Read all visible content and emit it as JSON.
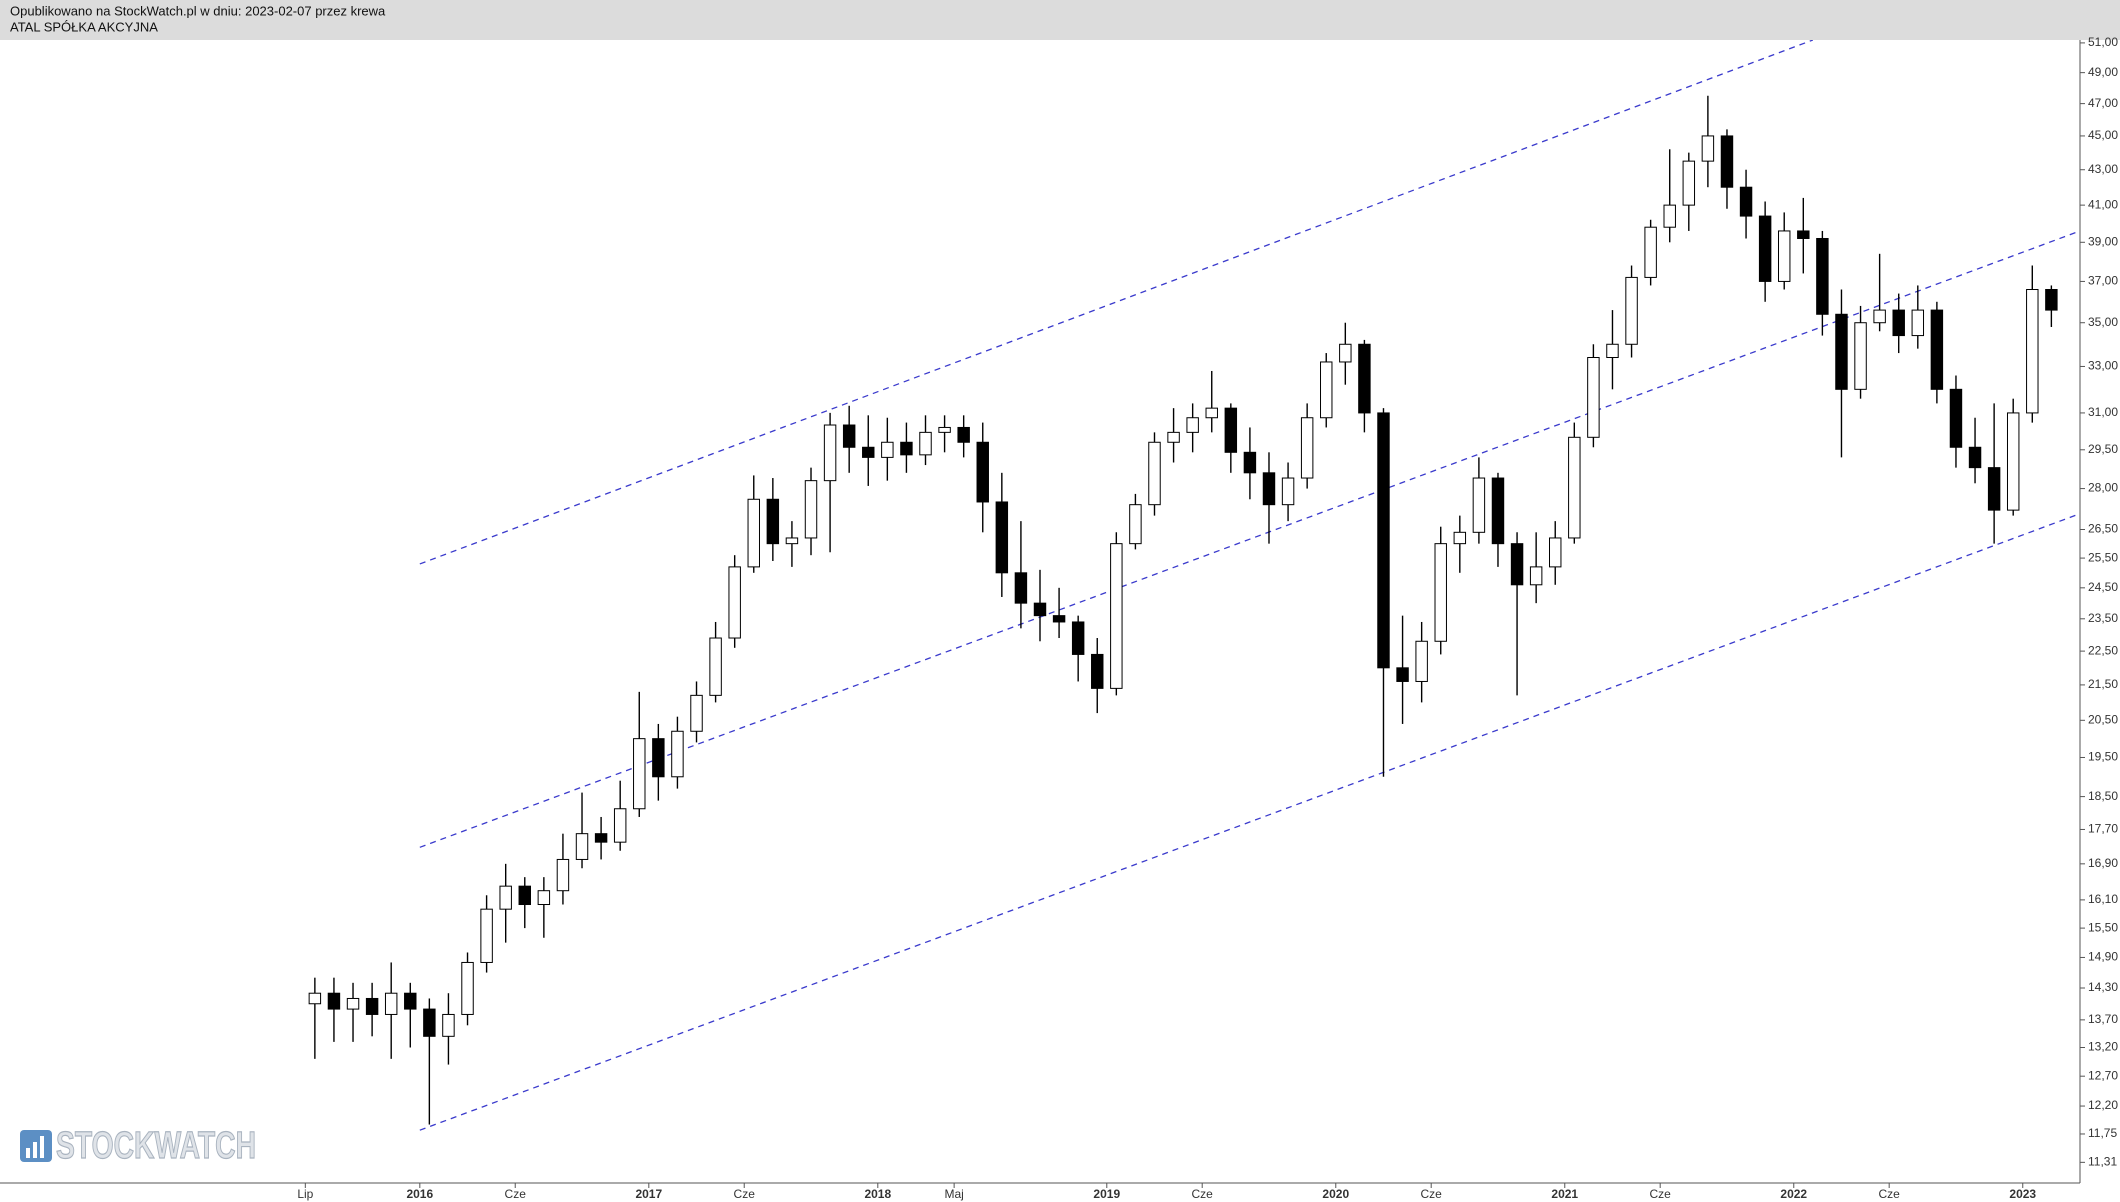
{
  "chart_data": {
    "type": "candlestick",
    "subtitle": "Opublikowano na StockWatch.pl w dniu: 2023-02-07 przez krewa",
    "title": "ATAL SPÓŁKA AKCYJNA",
    "watermark": "STOCKWATCH",
    "log_y": true,
    "up_color": "#ffffff",
    "down_color": "#000000",
    "x": [
      "2015-07",
      "2015-08",
      "2015-09",
      "2015-10",
      "2015-11",
      "2015-12",
      "2016-01",
      "2016-02",
      "2016-03",
      "2016-04",
      "2016-05",
      "2016-06",
      "2016-07",
      "2016-08",
      "2016-09",
      "2016-10",
      "2016-11",
      "2016-12",
      "2017-01",
      "2017-02",
      "2017-03",
      "2017-04",
      "2017-05",
      "2017-06",
      "2017-07",
      "2017-08",
      "2017-09",
      "2017-10",
      "2017-11",
      "2017-12",
      "2018-01",
      "2018-02",
      "2018-03",
      "2018-04",
      "2018-05",
      "2018-06",
      "2018-07",
      "2018-08",
      "2018-09",
      "2018-10",
      "2018-11",
      "2018-12",
      "2019-01",
      "2019-02",
      "2019-03",
      "2019-04",
      "2019-05",
      "2019-06",
      "2019-07",
      "2019-08",
      "2019-09",
      "2019-10",
      "2019-11",
      "2019-12",
      "2020-01",
      "2020-02",
      "2020-03",
      "2020-04",
      "2020-05",
      "2020-06",
      "2020-07",
      "2020-08",
      "2020-09",
      "2020-10",
      "2020-11",
      "2020-12",
      "2021-01",
      "2021-02",
      "2021-03",
      "2021-04",
      "2021-05",
      "2021-06",
      "2021-07",
      "2021-08",
      "2021-09",
      "2021-10",
      "2021-11",
      "2021-12",
      "2022-01",
      "2022-02",
      "2022-03",
      "2022-04",
      "2022-05",
      "2022-06",
      "2022-07",
      "2022-08",
      "2022-09",
      "2022-10",
      "2022-11",
      "2022-12",
      "2023-01",
      "2023-02"
    ],
    "open": [
      14.0,
      14.2,
      13.9,
      14.1,
      13.8,
      14.2,
      13.9,
      13.4,
      13.8,
      14.8,
      15.9,
      16.4,
      16.0,
      16.3,
      17.0,
      17.6,
      17.4,
      18.2,
      20.0,
      19.0,
      20.2,
      21.2,
      22.9,
      25.2,
      27.6,
      26.0,
      26.2,
      28.3,
      30.5,
      29.6,
      29.2,
      29.8,
      29.3,
      30.2,
      30.4,
      29.8,
      27.5,
      25.0,
      24.0,
      23.6,
      23.4,
      22.4,
      21.4,
      26.0,
      27.4,
      29.8,
      30.2,
      30.8,
      31.2,
      29.4,
      28.6,
      27.4,
      28.4,
      30.8,
      33.2,
      34.0,
      31.0,
      22.0,
      21.6,
      22.8,
      26.0,
      26.4,
      28.4,
      26.0,
      24.6,
      25.2,
      26.2,
      30.0,
      33.4,
      34.0,
      37.2,
      39.8,
      41.0,
      43.5,
      45.0,
      42.0,
      40.4,
      37.0,
      39.6,
      39.2,
      35.4,
      32.0,
      35.0,
      35.6,
      34.4,
      35.6,
      32.0,
      29.6,
      28.8,
      27.2,
      31.0,
      36.6
    ],
    "high": [
      14.5,
      14.5,
      14.4,
      14.4,
      14.8,
      14.4,
      14.1,
      14.2,
      15.0,
      16.2,
      16.9,
      16.6,
      16.6,
      17.6,
      18.6,
      18.0,
      18.9,
      21.3,
      20.4,
      20.6,
      21.6,
      23.4,
      25.6,
      28.5,
      28.4,
      26.8,
      28.8,
      31.0,
      31.3,
      30.9,
      30.8,
      30.6,
      30.9,
      30.9,
      30.9,
      30.6,
      28.6,
      26.8,
      25.1,
      24.5,
      23.6,
      22.9,
      26.4,
      27.8,
      30.2,
      31.2,
      31.4,
      32.8,
      31.4,
      30.4,
      29.4,
      29.0,
      31.4,
      33.6,
      35.0,
      34.2,
      31.2,
      23.6,
      23.4,
      26.6,
      27.0,
      29.2,
      28.6,
      26.4,
      26.4,
      26.8,
      30.6,
      34.0,
      35.6,
      37.8,
      40.2,
      44.2,
      44.0,
      47.5,
      45.4,
      43.0,
      41.2,
      40.6,
      41.4,
      39.6,
      36.6,
      35.8,
      38.4,
      36.4,
      36.8,
      36.0,
      32.6,
      30.8,
      31.4,
      31.6,
      37.8,
      36.8
    ],
    "low": [
      13.0,
      13.3,
      13.3,
      13.4,
      13.0,
      13.2,
      11.9,
      12.9,
      13.6,
      14.6,
      15.2,
      15.5,
      15.3,
      16.0,
      16.8,
      17.0,
      17.2,
      18.0,
      18.4,
      18.7,
      19.9,
      21.0,
      22.6,
      25.0,
      25.4,
      25.2,
      25.6,
      25.7,
      28.6,
      28.1,
      28.3,
      28.6,
      28.9,
      29.4,
      29.2,
      26.4,
      24.2,
      23.2,
      22.8,
      22.9,
      21.6,
      20.7,
      21.2,
      25.8,
      27.0,
      29.0,
      29.4,
      30.2,
      28.6,
      27.6,
      26.0,
      26.8,
      28.0,
      30.4,
      32.2,
      30.2,
      19.0,
      20.4,
      21.0,
      22.4,
      25.0,
      26.0,
      25.2,
      21.2,
      24.0,
      24.6,
      26.0,
      29.6,
      32.0,
      33.4,
      36.8,
      39.0,
      39.6,
      42.0,
      40.8,
      39.2,
      36.0,
      36.6,
      37.4,
      34.4,
      29.2,
      31.6,
      34.6,
      33.6,
      33.8,
      31.4,
      28.8,
      28.2,
      26.0,
      27.0,
      30.6,
      34.8
    ],
    "close": [
      14.2,
      13.9,
      14.1,
      13.8,
      14.2,
      13.9,
      13.4,
      13.8,
      14.8,
      15.9,
      16.4,
      16.0,
      16.3,
      17.0,
      17.6,
      17.4,
      18.2,
      20.0,
      19.0,
      20.2,
      21.2,
      22.9,
      25.2,
      27.6,
      26.0,
      26.2,
      28.3,
      30.5,
      29.6,
      29.2,
      29.8,
      29.3,
      30.2,
      30.4,
      29.8,
      27.5,
      25.0,
      24.0,
      23.6,
      23.4,
      22.4,
      21.4,
      26.0,
      27.4,
      29.8,
      30.2,
      30.8,
      31.2,
      29.4,
      28.6,
      27.4,
      28.4,
      30.8,
      33.2,
      34.0,
      31.0,
      22.0,
      21.6,
      22.8,
      26.0,
      26.4,
      28.4,
      26.0,
      24.6,
      25.2,
      26.2,
      30.0,
      33.4,
      34.0,
      37.2,
      39.8,
      41.0,
      43.5,
      45.0,
      42.0,
      40.4,
      37.0,
      39.6,
      39.2,
      35.4,
      32.0,
      35.0,
      35.6,
      34.4,
      35.6,
      32.0,
      29.6,
      28.8,
      27.2,
      31.0,
      36.6,
      35.6
    ],
    "trendlines": [
      {
        "x": [
          "2016-01",
          "2022-02"
        ],
        "values": [
          25.3,
          51.2
        ],
        "color": "#3a3acc"
      },
      {
        "x": [
          "2016-01",
          "2023-04"
        ],
        "values": [
          17.28,
          39.6
        ],
        "color": "#3a3acc"
      },
      {
        "x": [
          "2016-01",
          "2023-04"
        ],
        "values": [
          11.81,
          27.07
        ],
        "color": "#3a3acc"
      }
    ],
    "xlim": [
      "2014-03",
      "2023-04"
    ],
    "xticks": [
      {
        "value": "2015-07",
        "label": "Lip"
      },
      {
        "value": "2016-01",
        "label": "2016"
      },
      {
        "value": "2016-06",
        "label": "Cze"
      },
      {
        "value": "2017-01",
        "label": "2017"
      },
      {
        "value": "2017-06",
        "label": "Cze"
      },
      {
        "value": "2018-01",
        "label": "2018"
      },
      {
        "value": "2018-05",
        "label": "Maj"
      },
      {
        "value": "2019-01",
        "label": "2019"
      },
      {
        "value": "2019-06",
        "label": "Cze"
      },
      {
        "value": "2020-01",
        "label": "2020"
      },
      {
        "value": "2020-06",
        "label": "Cze"
      },
      {
        "value": "2021-01",
        "label": "2021"
      },
      {
        "value": "2021-06",
        "label": "Cze"
      },
      {
        "value": "2022-01",
        "label": "2022"
      },
      {
        "value": "2022-06",
        "label": "Cze"
      },
      {
        "value": "2023-01",
        "label": "2023"
      }
    ],
    "ylim": [
      11.0,
      51.2
    ],
    "yticks": [
      {
        "value": 51,
        "label": "51,00"
      },
      {
        "value": 49,
        "label": "49,00"
      },
      {
        "value": 47,
        "label": "47,00"
      },
      {
        "value": 45,
        "label": "45,00"
      },
      {
        "value": 43,
        "label": "43,00"
      },
      {
        "value": 41,
        "label": "41,00"
      },
      {
        "value": 39,
        "label": "39,00"
      },
      {
        "value": 37,
        "label": "37,00"
      },
      {
        "value": 35,
        "label": "35,00"
      },
      {
        "value": 33,
        "label": "33,00"
      },
      {
        "value": 31,
        "label": "31,00"
      },
      {
        "value": 29.5,
        "label": "29,50"
      },
      {
        "value": 28,
        "label": "28,00"
      },
      {
        "value": 26.5,
        "label": "26,50"
      },
      {
        "value": 25.5,
        "label": "25,50"
      },
      {
        "value": 24.5,
        "label": "24,50"
      },
      {
        "value": 23.5,
        "label": "23,50"
      },
      {
        "value": 22.5,
        "label": "22,50"
      },
      {
        "value": 21.5,
        "label": "21,50"
      },
      {
        "value": 20.5,
        "label": "20,50"
      },
      {
        "value": 19.5,
        "label": "19,50"
      },
      {
        "value": 18.5,
        "label": "18,50"
      },
      {
        "value": 17.7,
        "label": "17,70"
      },
      {
        "value": 16.9,
        "label": "16,90"
      },
      {
        "value": 16.1,
        "label": "16,10"
      },
      {
        "value": 15.5,
        "label": "15,50"
      },
      {
        "value": 14.9,
        "label": "14,90"
      },
      {
        "value": 14.3,
        "label": "14,30"
      },
      {
        "value": 13.7,
        "label": "13,70"
      },
      {
        "value": 13.2,
        "label": "13,20"
      },
      {
        "value": 12.7,
        "label": "12,70"
      },
      {
        "value": 12.2,
        "label": "12,20"
      },
      {
        "value": 11.75,
        "label": "11,75"
      },
      {
        "value": 11.31,
        "label": "11,31"
      }
    ]
  }
}
